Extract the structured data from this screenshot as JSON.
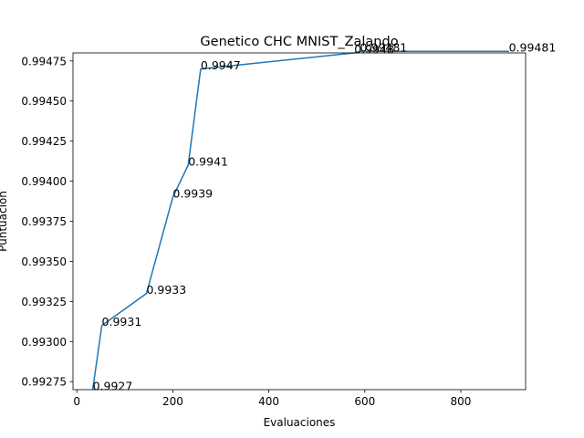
{
  "chart_data": {
    "type": "line",
    "title": "Genetico CHC MNIST_Zalando",
    "xlabel": "Evaluaciones",
    "ylabel": "Puntuación",
    "xlim": [
      -8,
      935
    ],
    "ylim": [
      0.9927,
      0.9948
    ],
    "x_ticks": [
      0,
      200,
      400,
      600,
      800
    ],
    "x_tick_labels": [
      "0",
      "200",
      "400",
      "600",
      "800"
    ],
    "y_ticks": [
      0.99275,
      0.993,
      0.99325,
      0.9935,
      0.99375,
      0.994,
      0.99425,
      0.9945,
      0.99475
    ],
    "y_tick_labels": [
      "0.99275",
      "0.99300",
      "0.99325",
      "0.99350",
      "0.99375",
      "0.99400",
      "0.99425",
      "0.99450",
      "0.99475"
    ],
    "grid": false,
    "series": [
      {
        "color": "#1f77b4",
        "x": [
          33,
          52,
          145,
          200,
          232,
          258,
          578,
          590,
          900
        ],
        "y": [
          0.9927,
          0.9931,
          0.9933,
          0.9939,
          0.9941,
          0.9947,
          0.9948,
          0.99481,
          0.99481
        ]
      }
    ],
    "annotations": [
      {
        "x": 33,
        "y": 0.9927,
        "text": "0.9927"
      },
      {
        "x": 52,
        "y": 0.9931,
        "text": "0.9931"
      },
      {
        "x": 145,
        "y": 0.9933,
        "text": "0.9933"
      },
      {
        "x": 200,
        "y": 0.9939,
        "text": "0.9939"
      },
      {
        "x": 232,
        "y": 0.9941,
        "text": "0.9941"
      },
      {
        "x": 258,
        "y": 0.9947,
        "text": "0.9947"
      },
      {
        "x": 578,
        "y": 0.9948,
        "text": "0.9948"
      },
      {
        "x": 590,
        "y": 0.99481,
        "text": "0.99481"
      },
      {
        "x": 900,
        "y": 0.99481,
        "text": "0.99481"
      }
    ]
  }
}
